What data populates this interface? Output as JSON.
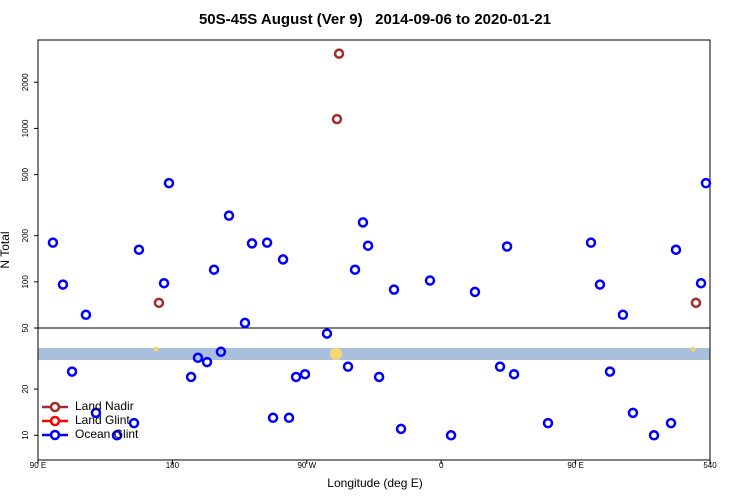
{
  "chart_data": {
    "type": "scatter",
    "title": "50S-45S August (Ver 9)   2014-09-06 to 2020-01-21",
    "x_label": "Longitude (deg E)",
    "y_label": "N Total",
    "log_y": true,
    "xlim": [
      90,
      540
    ],
    "ylim": [
      6.9,
      3770
    ],
    "xticks": [
      {
        "value": 90,
        "label": "90 E"
      },
      180,
      {
        "value": 270,
        "label": "90 W"
      },
      {
        "value": 360,
        "label": "0"
      },
      {
        "value": 450,
        "label": "90 E"
      },
      540
    ],
    "yticks": [
      10,
      20,
      50,
      100,
      200,
      500,
      1000,
      2000
    ],
    "legend": "bottom-left",
    "series": [
      {
        "name": "Land Nadir",
        "color": "#a52a2a",
        "x": [
          291.6,
          290.2,
          171.0,
          530.6
        ],
        "values": [
          3070,
          1150,
          73,
          73
        ]
      },
      {
        "name": "Land Glint",
        "color": "#ff0000",
        "x": [],
        "values": []
      },
      {
        "name": "Ocean Glint",
        "color": "#0000ff",
        "x": [
          100.0,
          106.7,
          112.8,
          122.1,
          128.8,
          142.9,
          154.3,
          157.6,
          174.4,
          177.7,
          192.5,
          197.1,
          203.2,
          207.9,
          212.5,
          217.9,
          228.6,
          233.3,
          243.4,
          247.4,
          254.1,
          258.1,
          262.8,
          268.8,
          283.5,
          297.6,
          302.3,
          307.6,
          311.0,
          318.4,
          328.4,
          333.1,
          352.5,
          366.6,
          382.6,
          399.4,
          404.1,
          408.8,
          431.5,
          460.3,
          466.3,
          473.0,
          481.7,
          488.4,
          502.5,
          513.9,
          517.2,
          534.0,
          537.3
        ],
        "values": [
          180,
          96,
          26,
          61,
          14,
          10,
          12,
          162,
          98,
          440,
          24,
          32,
          30,
          120,
          35,
          270,
          54,
          178,
          180,
          13,
          140,
          13,
          24,
          25,
          46,
          28,
          120,
          244,
          172,
          24,
          89,
          11,
          102,
          10,
          86,
          28,
          170,
          25,
          12,
          180,
          96,
          26,
          61,
          14,
          10,
          12,
          162,
          98,
          440
        ]
      }
    ]
  }
}
